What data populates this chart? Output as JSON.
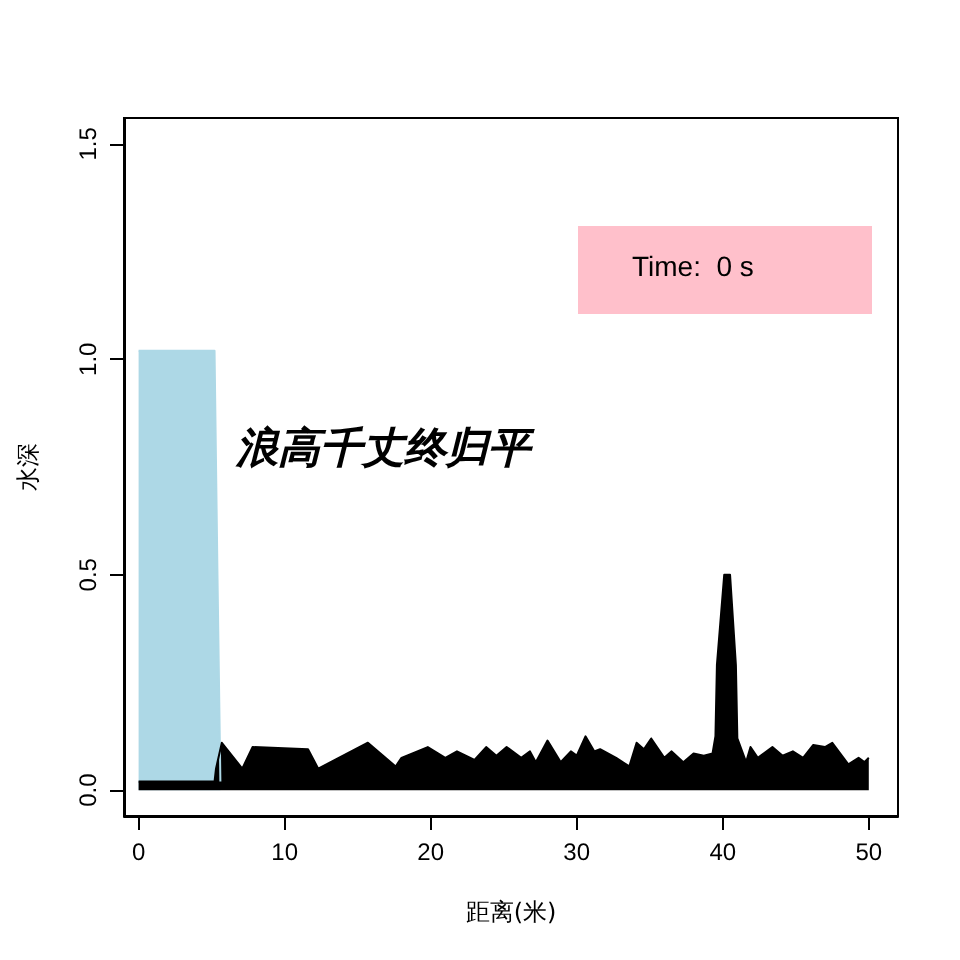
{
  "chart_data": {
    "type": "area",
    "xlabel": "距离(米)",
    "ylabel": "水深",
    "annotations": [
      "浪高千丈终归平",
      "Time:  0 s"
    ],
    "series": [
      {
        "color": "#add8e6",
        "x": [
          0,
          5.2,
          5.4,
          5.6
        ],
        "values": [
          1.02,
          1.02,
          0.5,
          0.02
        ]
      },
      {
        "color": "#000000",
        "x": [
          0,
          5.2,
          5.3,
          5.7,
          7.1,
          7.8,
          11.6,
          12.3,
          15.7,
          17.6,
          18,
          19.8,
          21,
          21.8,
          23,
          23.8,
          24.5,
          25.2,
          26.2,
          26.8,
          27.2,
          28,
          28.9,
          29.6,
          30,
          30.6,
          31.2,
          31.6,
          32.7,
          33.6,
          34.1,
          34.6,
          35.1,
          36,
          36.5,
          37.3,
          38,
          38.7,
          39.3,
          39.5,
          39.6,
          40.1,
          40.5,
          40.9,
          41,
          41.6,
          41.9,
          42.4,
          43.4,
          44.1,
          44.8,
          45.5,
          46.2,
          47,
          47.5,
          48.6,
          49.3,
          49.7,
          50
        ],
        "values": [
          0.02,
          0.02,
          0.05,
          0.11,
          0.05,
          0.1,
          0.095,
          0.05,
          0.11,
          0.055,
          0.075,
          0.1,
          0.075,
          0.09,
          0.07,
          0.1,
          0.08,
          0.1,
          0.075,
          0.09,
          0.065,
          0.115,
          0.065,
          0.09,
          0.08,
          0.125,
          0.09,
          0.095,
          0.075,
          0.055,
          0.11,
          0.095,
          0.12,
          0.075,
          0.09,
          0.065,
          0.085,
          0.08,
          0.085,
          0.125,
          0.29,
          0.5,
          0.5,
          0.29,
          0.12,
          0.065,
          0.1,
          0.075,
          0.1,
          0.08,
          0.09,
          0.075,
          0.105,
          0.1,
          0.11,
          0.06,
          0.075,
          0.065,
          0.075
        ]
      }
    ],
    "xlim": [
      -1,
      52
    ],
    "xticks": [
      0,
      10,
      20,
      30,
      40,
      50
    ],
    "ylim": [
      -0.06,
      1.56
    ],
    "yticks": [
      {
        "value": 0,
        "label": "0.0"
      },
      {
        "value": 0.5,
        "label": "0.5"
      },
      {
        "value": 1,
        "label": "1.0"
      },
      {
        "value": 1.5,
        "label": "1.5"
      }
    ],
    "grid": false
  }
}
